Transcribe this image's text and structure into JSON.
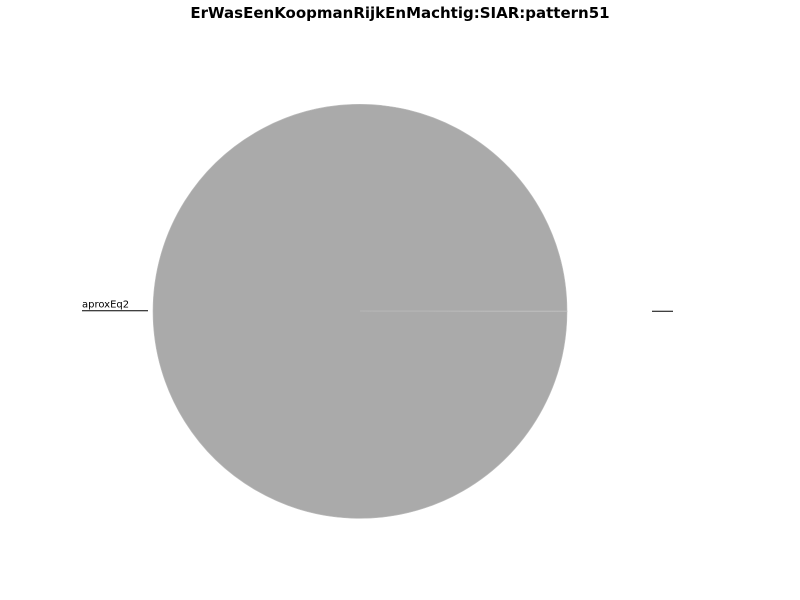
{
  "chart_data": {
    "type": "pie",
    "title": "ErWasEenKoopmanRijkEnMachtig:SIAR:pattern51",
    "slices": [
      {
        "label": "aproxEq2",
        "value": 99.95,
        "color": "#aaaaaa"
      },
      {
        "label": "",
        "value": 0.05,
        "color": "#aaaaaa"
      }
    ],
    "start_angle_deg": 0,
    "direction": "counterclockwise",
    "slice_edge_color": "#bbbbbb",
    "label_line_color": "#000000"
  }
}
